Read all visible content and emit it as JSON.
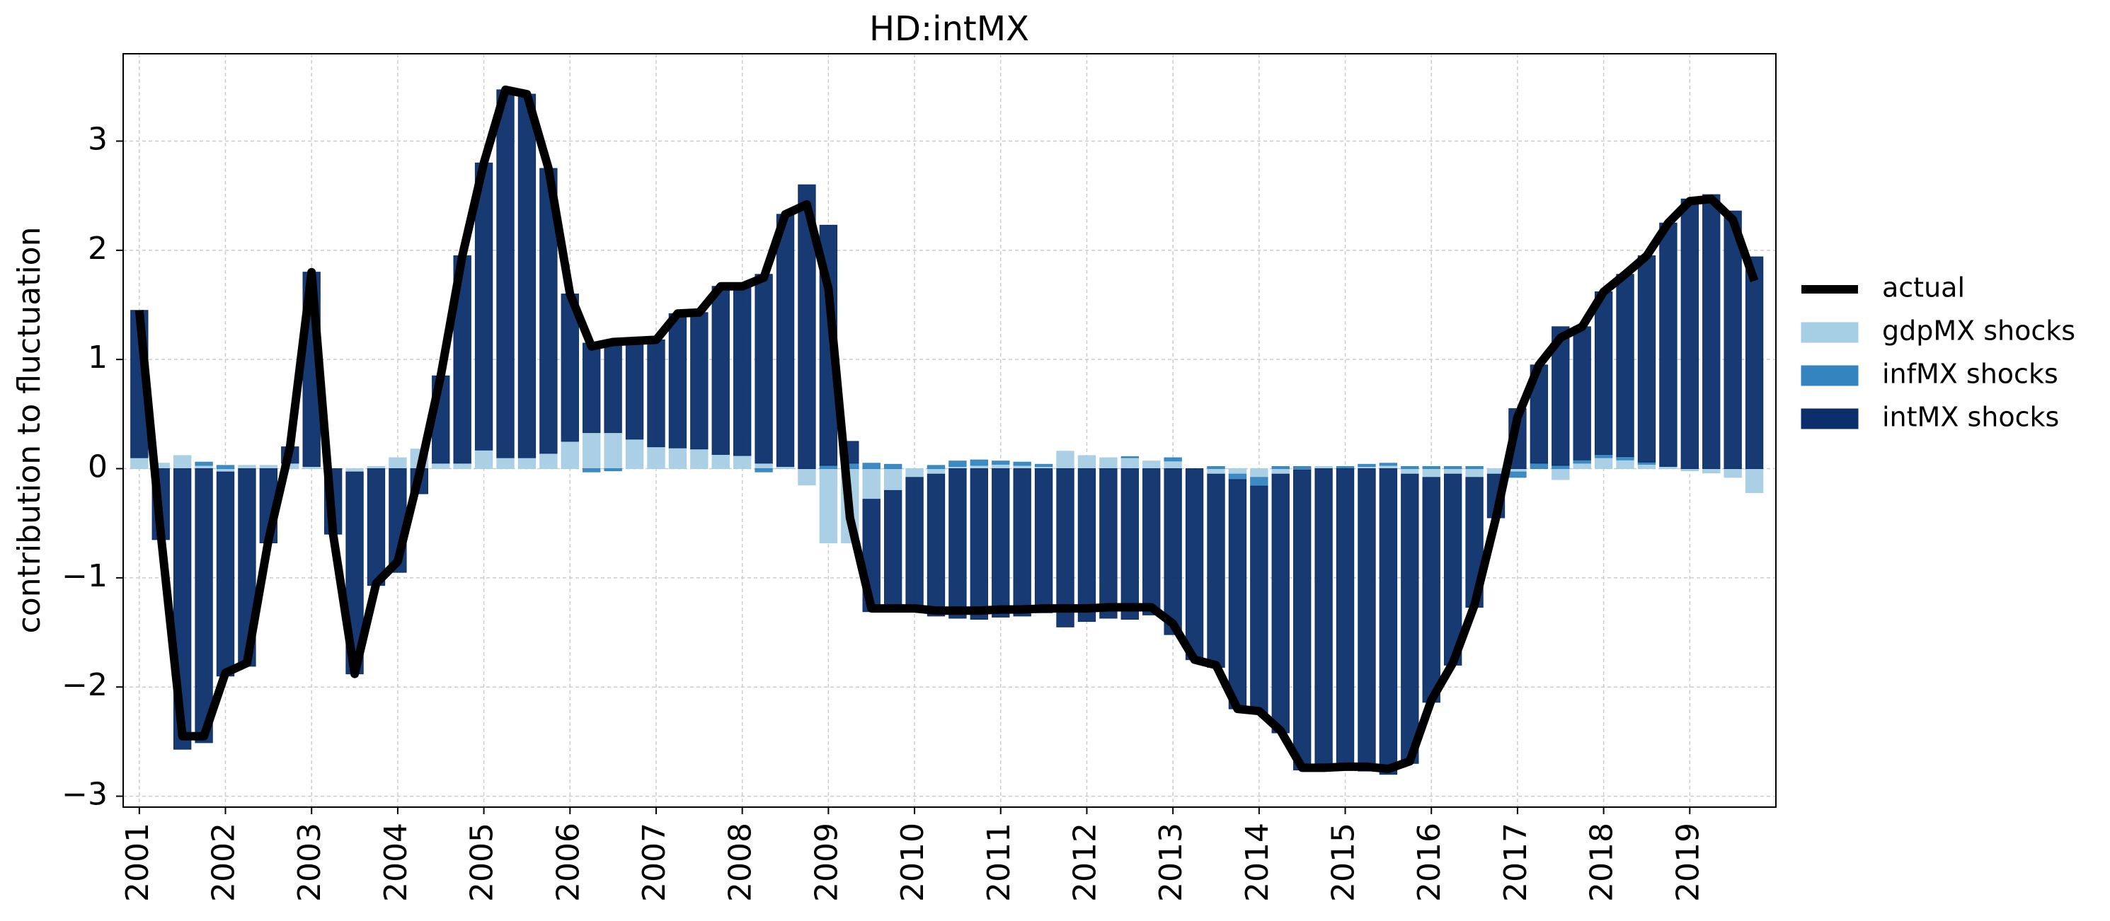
{
  "chart_data": {
    "type": "bar",
    "stacked": true,
    "title": "HD:intMX",
    "y_label": "contribution to fluctuation",
    "categories": [
      "2001",
      null,
      null,
      null,
      "2002",
      null,
      null,
      null,
      "2003",
      null,
      null,
      null,
      "2004",
      null,
      null,
      null,
      "2005",
      null,
      null,
      null,
      "2006",
      null,
      null,
      null,
      "2007",
      null,
      null,
      null,
      "2008",
      null,
      null,
      null,
      "2009",
      null,
      null,
      null,
      "2010",
      null,
      null,
      null,
      "2011",
      null,
      null,
      null,
      "2012",
      null,
      null,
      null,
      "2013",
      null,
      null,
      null,
      "2014",
      null,
      null,
      null,
      "2015",
      null,
      null,
      null,
      "2016",
      null,
      null,
      null,
      "2017",
      null,
      null,
      null,
      "2018",
      null,
      null,
      null,
      "2019",
      null,
      null,
      null
    ],
    "series": [
      {
        "name": "actual",
        "type": "line",
        "color": "#000000",
        "values": [
          1.45,
          -0.6,
          -2.45,
          -2.45,
          -1.87,
          -1.78,
          -0.65,
          0.2,
          1.8,
          -0.6,
          -1.88,
          -1.05,
          -0.85,
          -0.05,
          0.85,
          1.95,
          2.8,
          3.47,
          3.43,
          2.75,
          1.6,
          1.12,
          1.16,
          1.17,
          1.18,
          1.42,
          1.43,
          1.67,
          1.67,
          1.75,
          2.33,
          2.42,
          1.65,
          -0.45,
          -1.28,
          -1.28,
          -1.28,
          -1.3,
          -1.3,
          -1.3,
          -1.29,
          -1.29,
          -1.28,
          -1.28,
          -1.28,
          -1.27,
          -1.27,
          -1.27,
          -1.42,
          -1.75,
          -1.8,
          -2.2,
          -2.22,
          -2.4,
          -2.74,
          -2.74,
          -2.73,
          -2.73,
          -2.75,
          -2.68,
          -2.12,
          -1.78,
          -1.25,
          -0.45,
          0.47,
          0.95,
          1.2,
          1.3,
          1.62,
          1.78,
          1.95,
          2.25,
          2.45,
          2.47,
          2.28,
          1.72
        ]
      },
      {
        "name": "gdpMX shocks",
        "color": "#a6cee4",
        "values": [
          0.1,
          0.05,
          0.12,
          0.03,
          -0.03,
          0.03,
          0.03,
          0.05,
          0.02,
          0.0,
          -0.03,
          0.02,
          0.1,
          0.18,
          0.05,
          0.05,
          0.17,
          0.1,
          0.1,
          0.14,
          0.25,
          0.33,
          0.33,
          0.27,
          0.2,
          0.19,
          0.18,
          0.13,
          0.12,
          0.05,
          0.02,
          -0.15,
          -0.68,
          -0.68,
          -0.28,
          -0.2,
          -0.08,
          -0.05,
          0.02,
          0.03,
          0.04,
          0.03,
          0.02,
          0.16,
          0.12,
          0.1,
          0.1,
          0.07,
          0.07,
          0.0,
          -0.05,
          -0.05,
          -0.08,
          -0.05,
          -0.01,
          0.02,
          0.0,
          0.02,
          0.03,
          -0.05,
          -0.08,
          -0.05,
          -0.08,
          -0.05,
          -0.03,
          0.0,
          -0.1,
          0.05,
          0.1,
          0.08,
          0.04,
          0.02,
          -0.02,
          -0.04,
          -0.08,
          -0.22
        ]
      },
      {
        "name": "infMX shocks",
        "color": "#3484bf",
        "values": [
          0,
          0,
          0,
          0.03,
          0.03,
          0,
          0,
          0,
          0,
          0,
          0,
          0,
          0,
          0,
          0,
          0,
          0,
          0,
          0,
          0,
          0,
          -0.03,
          -0.02,
          0,
          0,
          0,
          0,
          0,
          0,
          -0.03,
          0,
          0,
          0.03,
          0.05,
          0.05,
          0.04,
          0,
          0.03,
          0.05,
          0.05,
          0.03,
          0.03,
          0.02,
          0,
          0,
          0,
          0.01,
          0,
          0.03,
          0,
          0.02,
          -0.05,
          -0.08,
          0.02,
          0.02,
          0,
          0.02,
          0.02,
          0.02,
          0.02,
          0.02,
          0.02,
          0.02,
          0,
          -0.05,
          0.05,
          0.03,
          0.03,
          0.03,
          0.03,
          0.02,
          0,
          0,
          0,
          0,
          0
        ]
      },
      {
        "name": "intMX shocks",
        "color": "#0b2f6b",
        "values": [
          1.35,
          -0.65,
          -2.57,
          -2.51,
          -1.87,
          -1.81,
          -0.68,
          0.15,
          1.78,
          -0.6,
          -1.85,
          -1.07,
          -0.95,
          -0.23,
          0.8,
          1.9,
          2.63,
          3.37,
          3.33,
          2.61,
          1.35,
          0.82,
          0.85,
          0.9,
          0.98,
          1.23,
          1.25,
          1.54,
          1.55,
          1.73,
          2.31,
          2.6,
          2.2,
          0.2,
          -1.03,
          -1.1,
          -1.2,
          -1.3,
          -1.37,
          -1.38,
          -1.36,
          -1.35,
          -1.32,
          -1.45,
          -1.4,
          -1.37,
          -1.38,
          -1.34,
          -1.52,
          -1.75,
          -1.77,
          -2.1,
          -2.08,
          -2.37,
          -2.75,
          -2.76,
          -2.75,
          -2.77,
          -2.8,
          -2.65,
          -2.06,
          -1.75,
          -1.19,
          -0.4,
          0.55,
          0.9,
          1.27,
          1.22,
          1.49,
          1.67,
          1.89,
          2.23,
          2.47,
          2.51,
          2.36,
          1.94
        ]
      }
    ],
    "ylim": [
      -3.1,
      3.8
    ],
    "yticks": [
      {
        "value": -3,
        "label": "−3"
      },
      {
        "value": -2,
        "label": "−2"
      },
      {
        "value": -1,
        "label": "−1"
      },
      0,
      1,
      2,
      3
    ],
    "grid": true,
    "legend": "outside right"
  }
}
